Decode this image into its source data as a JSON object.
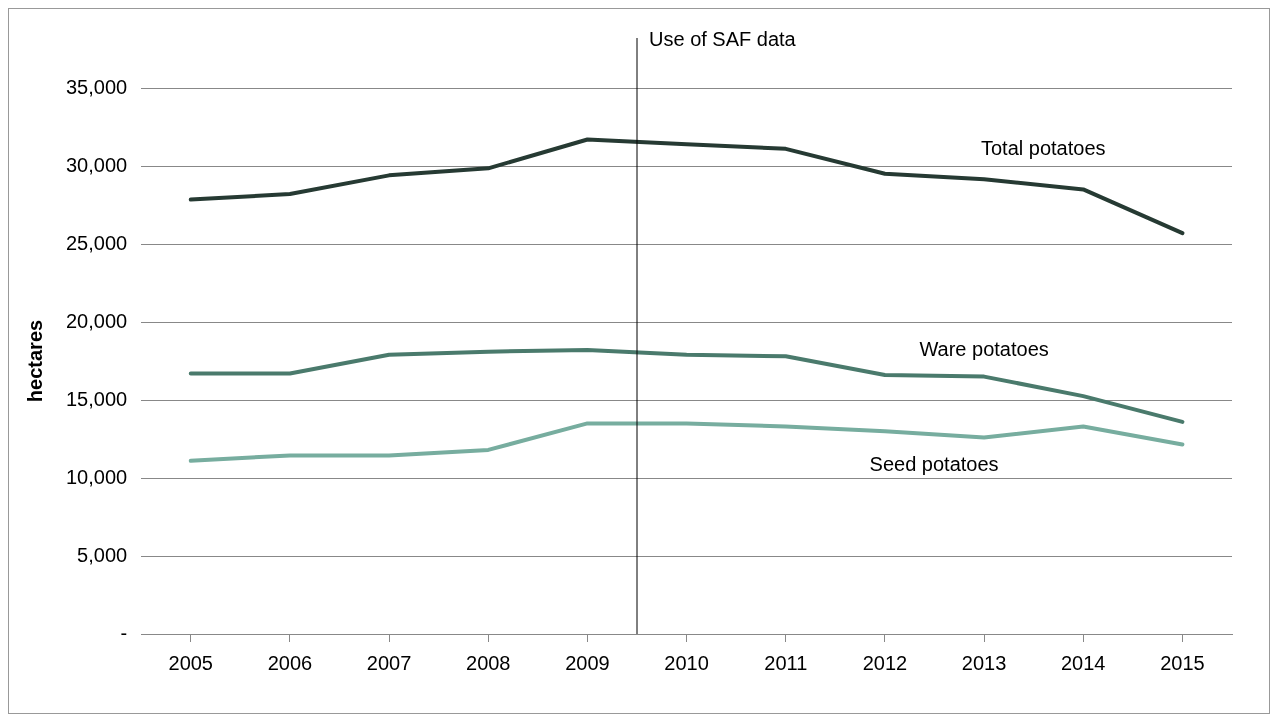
{
  "chart_data": {
    "type": "line",
    "ylabel": "hectares",
    "x": [
      2005,
      2006,
      2007,
      2008,
      2009,
      2010,
      2011,
      2012,
      2013,
      2014,
      2015
    ],
    "xlim": [
      2004.5,
      2015.5
    ],
    "xticks": [
      2005,
      2006,
      2007,
      2008,
      2009,
      2010,
      2011,
      2012,
      2013,
      2014,
      2015
    ],
    "ylim": [
      0,
      35000
    ],
    "yticks": [
      {
        "value": 0,
        "label": "-"
      },
      {
        "value": 5000,
        "label": "5,000"
      },
      {
        "value": 10000,
        "label": "10,000"
      },
      {
        "value": 15000,
        "label": "15,000"
      },
      {
        "value": 20000,
        "label": "20,000"
      },
      {
        "value": 25000,
        "label": "25,000"
      },
      {
        "value": 30000,
        "label": "30,000"
      },
      {
        "value": 35000,
        "label": "35,000"
      }
    ],
    "grid": "y",
    "legend": false,
    "marker": "none",
    "line_style": "solid",
    "series": [
      {
        "name": "Total potatoes",
        "color": "#263a33",
        "values": [
          27850,
          28200,
          29400,
          29850,
          31700,
          31400,
          31100,
          29500,
          29150,
          28500,
          25700
        ]
      },
      {
        "name": "Ware potatoes",
        "color": "#4a7a6c",
        "values": [
          16700,
          16700,
          17900,
          18100,
          18200,
          17900,
          17800,
          16600,
          16500,
          15250,
          13600
        ]
      },
      {
        "name": "Seed potatoes",
        "color": "#77ad9f",
        "values": [
          11100,
          11450,
          11450,
          11800,
          13500,
          13500,
          13300,
          13000,
          12600,
          13300,
          12150
        ]
      }
    ],
    "ref_lines": [
      {
        "axis": "x",
        "value": 2009.5,
        "label": "Use of SAF data",
        "color": "#000000"
      }
    ]
  }
}
